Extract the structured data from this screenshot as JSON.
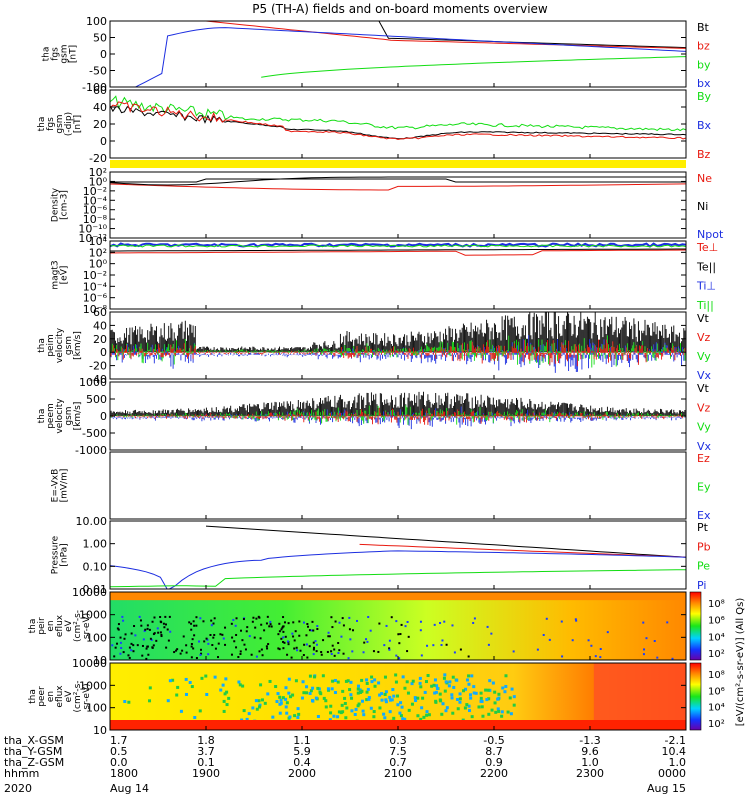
{
  "title": "P5 (TH-A) fields and on-board moments overview",
  "colors": {
    "black": "#000000",
    "red": "#e8190f",
    "green": "#12dd12",
    "blue": "#1c2ee0",
    "yellow": "#ffee00"
  },
  "x_axis": {
    "row_labels": [
      "tha_X-GSM",
      "tha_Y-GSM",
      "tha_Z-GSM",
      "hhmm",
      "2020"
    ],
    "ticks": [
      {
        "values": [
          "1.7",
          "0.5",
          "0.0",
          "1800",
          "Aug 14"
        ]
      },
      {
        "values": [
          "1.8",
          "3.7",
          "0.1",
          "1900",
          ""
        ]
      },
      {
        "values": [
          "1.1",
          "5.9",
          "0.4",
          "2000",
          ""
        ]
      },
      {
        "values": [
          "0.3",
          "7.5",
          "0.7",
          "2100",
          ""
        ]
      },
      {
        "values": [
          "-0.5",
          "8.7",
          "0.9",
          "2200",
          ""
        ]
      },
      {
        "values": [
          "-1.3",
          "9.6",
          "1.0",
          "2300",
          ""
        ]
      },
      {
        "values": [
          "-2.1",
          "10.4",
          "1.0",
          "0000",
          "Aug 15"
        ]
      }
    ]
  },
  "chart_data": [
    {
      "type": "line",
      "ylabel": [
        "tha",
        "fgs",
        "gsm",
        "[nT]"
      ],
      "ylim": [
        -100,
        100
      ],
      "ytick_labels": [
        "100",
        "50",
        "0",
        "-50",
        "-100"
      ],
      "series": [
        {
          "name": "Bt",
          "color": "black"
        },
        {
          "name": "bz",
          "color": "red"
        },
        {
          "name": "by",
          "color": "green"
        },
        {
          "name": "bx",
          "color": "blue"
        }
      ]
    },
    {
      "type": "line",
      "ylabel": [
        "tha",
        "fgs",
        "gsm",
        "(-dip)",
        "[nT]"
      ],
      "ylim": [
        -30,
        60
      ],
      "ytick_labels": [
        "60",
        "40",
        "20",
        "0",
        "-20"
      ],
      "series": [
        {
          "name": "By",
          "color": "green"
        },
        {
          "name": "Bx",
          "color": "blue"
        },
        {
          "name": "Bz",
          "color": "red"
        }
      ]
    },
    {
      "type": "line",
      "ylabel": [
        "Density",
        "[cm-3]"
      ],
      "scale": "log",
      "ytick_labels": [
        "10²",
        "10⁰",
        "10⁻²",
        "10⁻⁴",
        "10⁻⁶",
        "10⁻⁸",
        "10⁻¹⁰",
        "10⁻¹²"
      ],
      "series": [
        {
          "name": "Ne",
          "color": "red"
        },
        {
          "name": "Ni",
          "color": "black"
        },
        {
          "name": "Npot",
          "color": "blue"
        }
      ]
    },
    {
      "type": "line",
      "ylabel": [
        "magt3",
        "[eV]"
      ],
      "scale": "log",
      "ytick_labels": [
        "10⁴",
        "10²",
        "10⁰",
        "10⁻²",
        "10⁻⁴",
        "10⁻⁶",
        "10⁻⁸"
      ],
      "series": [
        {
          "name": "Te⊥",
          "color": "red"
        },
        {
          "name": "Te||",
          "color": "black"
        },
        {
          "name": "Ti⊥",
          "color": "blue"
        },
        {
          "name": "Ti||",
          "color": "green"
        }
      ]
    },
    {
      "type": "line",
      "ylabel": [
        "tha",
        "peim",
        "velocity",
        "gsm",
        "[km/s]"
      ],
      "ylim": [
        -40,
        60
      ],
      "ytick_labels": [
        "60",
        "40",
        "20",
        "0",
        "-20",
        "-40"
      ],
      "series": [
        {
          "name": "Vt",
          "color": "black"
        },
        {
          "name": "Vz",
          "color": "red"
        },
        {
          "name": "Vy",
          "color": "green"
        },
        {
          "name": "Vx",
          "color": "blue"
        }
      ]
    },
    {
      "type": "line",
      "ylabel": [
        "tha",
        "peem",
        "velocity",
        "gsm",
        "[km/s]"
      ],
      "ylim": [
        -1000,
        1000
      ],
      "ytick_labels": [
        "1000",
        "500",
        "0",
        "-500",
        "-1000"
      ],
      "series": [
        {
          "name": "Vt",
          "color": "black"
        },
        {
          "name": "Vz",
          "color": "red"
        },
        {
          "name": "Vy",
          "color": "green"
        },
        {
          "name": "Vx",
          "color": "blue"
        }
      ]
    },
    {
      "type": "line",
      "ylabel": [
        "E=-VxB",
        "[mV/m]"
      ],
      "series": [
        {
          "name": "Ez",
          "color": "red"
        },
        {
          "name": "Ey",
          "color": "green"
        },
        {
          "name": "Ex",
          "color": "blue"
        }
      ]
    },
    {
      "type": "line",
      "ylabel": [
        "Pressure",
        "[nPa]"
      ],
      "scale": "log",
      "ytick_labels": [
        "10.00",
        "1.00",
        "0.10",
        "0.01"
      ],
      "series": [
        {
          "name": "Pt",
          "color": "black"
        },
        {
          "name": "Pb",
          "color": "red"
        },
        {
          "name": "Pe",
          "color": "green"
        },
        {
          "name": "Pi",
          "color": "blue"
        }
      ]
    },
    {
      "type": "heatmap",
      "ylabel": [
        "tha",
        "peir",
        "en",
        "eflux",
        "eV",
        "(cm²-s-",
        "sr-eV)"
      ],
      "ytick_labels": [
        "10000",
        "1000",
        "100",
        "10"
      ],
      "colorbar_ticks": [
        "10⁸",
        "10⁶",
        "10⁴",
        "10²"
      ]
    },
    {
      "type": "heatmap",
      "ylabel": [
        "tha",
        "peer",
        "en",
        "eflux",
        "eV",
        "(cm²-s-",
        "sr-eV)"
      ],
      "ytick_labels": [
        "10000",
        "1000",
        "100",
        "10"
      ],
      "colorbar_ticks": [
        "10⁸",
        "10⁶",
        "10⁴",
        "10²"
      ]
    }
  ],
  "colorbar_label": "[eV/(cm²-s-sr-eV)] (All Qs)"
}
